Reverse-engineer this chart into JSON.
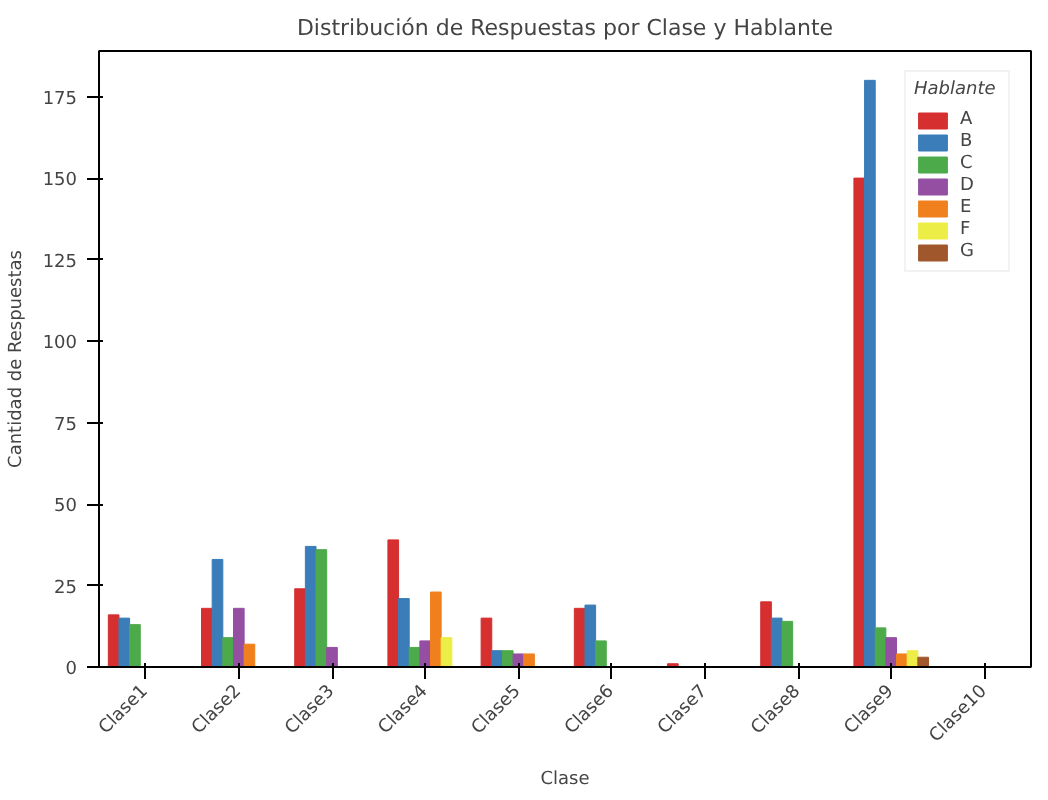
{
  "chart_data": {
    "type": "bar",
    "title": "Distribución de Respuestas por Clase y Hablante",
    "xlabel": "Clase",
    "ylabel": "Cantidad de Respuestas",
    "legend_title": "Hablante",
    "categories": [
      "Clase1",
      "Clase2",
      "Clase3",
      "Clase4",
      "Clase5",
      "Clase6",
      "Clase7",
      "Clase8",
      "Clase9",
      "Clase10"
    ],
    "series": [
      {
        "name": "A",
        "color": "#d62f2f",
        "values": [
          16,
          18,
          24,
          39,
          15,
          18,
          1,
          20,
          150,
          null
        ]
      },
      {
        "name": "B",
        "color": "#3a7db8",
        "values": [
          15,
          33,
          37,
          21,
          5,
          19,
          null,
          15,
          180,
          null
        ]
      },
      {
        "name": "C",
        "color": "#4daa4a",
        "values": [
          13,
          9,
          36,
          6,
          5,
          8,
          null,
          14,
          12,
          null
        ]
      },
      {
        "name": "D",
        "color": "#944fa3",
        "values": [
          null,
          18,
          6,
          8,
          4,
          null,
          null,
          null,
          9,
          null
        ]
      },
      {
        "name": "E",
        "color": "#f0801e",
        "values": [
          null,
          7,
          null,
          23,
          4,
          null,
          null,
          null,
          4,
          null
        ]
      },
      {
        "name": "F",
        "color": "#eded47",
        "values": [
          null,
          null,
          null,
          9,
          null,
          null,
          null,
          null,
          5,
          null
        ]
      },
      {
        "name": "G",
        "color": "#a1572c",
        "values": [
          null,
          null,
          null,
          null,
          null,
          null,
          null,
          null,
          3,
          null
        ]
      }
    ],
    "ylim": [
      0,
      189
    ],
    "yticks": [
      0,
      25,
      50,
      75,
      100,
      125,
      150,
      175
    ],
    "grid": false,
    "legend": "top right"
  }
}
